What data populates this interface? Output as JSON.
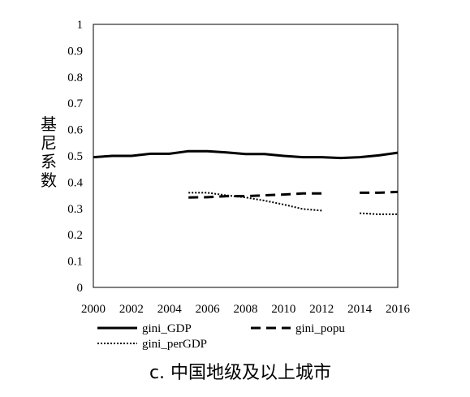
{
  "chart_data": {
    "type": "line",
    "caption": "c. 中国地级及以上城市",
    "ylabel": "基尼系数",
    "xlabel": "",
    "xlim": [
      2000,
      2016
    ],
    "ylim": [
      0,
      1
    ],
    "x_ticks": [
      "2000",
      "2002",
      "2004",
      "2006",
      "2008",
      "2010",
      "2012",
      "2014",
      "2016"
    ],
    "y_ticks": [
      "0",
      "0.1",
      "0.2",
      "0.3",
      "0.4",
      "0.5",
      "0.6",
      "0.7",
      "0.8",
      "0.9",
      "1"
    ],
    "grid": false,
    "legend_position": "bottom",
    "series": [
      {
        "name": "gini_GDP",
        "style": "solid",
        "color": "#000000",
        "points": [
          [
            2000,
            0.495
          ],
          [
            2001,
            0.5
          ],
          [
            2002,
            0.5
          ],
          [
            2003,
            0.508
          ],
          [
            2004,
            0.508
          ],
          [
            2005,
            0.518
          ],
          [
            2006,
            0.518
          ],
          [
            2007,
            0.513
          ],
          [
            2008,
            0.507
          ],
          [
            2009,
            0.507
          ],
          [
            2010,
            0.5
          ],
          [
            2011,
            0.495
          ],
          [
            2012,
            0.495
          ],
          [
            2013,
            0.492
          ],
          [
            2014,
            0.495
          ],
          [
            2015,
            0.502
          ],
          [
            2016,
            0.512
          ]
        ]
      },
      {
        "name": "gini_popu",
        "style": "dashed",
        "color": "#000000",
        "points": [
          [
            2005,
            0.342
          ],
          [
            2006,
            0.343
          ],
          [
            2007,
            0.347
          ],
          [
            2008,
            0.347
          ],
          [
            2009,
            0.35
          ],
          [
            2010,
            0.353
          ],
          [
            2011,
            0.357
          ],
          [
            2012,
            0.357
          ],
          [
            null,
            null
          ],
          [
            2014,
            0.36
          ],
          [
            2015,
            0.36
          ],
          [
            2016,
            0.363
          ]
        ]
      },
      {
        "name": "gini_perGDP",
        "style": "dotted",
        "color": "#000000",
        "points": [
          [
            2005,
            0.36
          ],
          [
            2006,
            0.36
          ],
          [
            2007,
            0.35
          ],
          [
            2008,
            0.342
          ],
          [
            2009,
            0.33
          ],
          [
            2010,
            0.315
          ],
          [
            2011,
            0.298
          ],
          [
            2012,
            0.292
          ],
          [
            null,
            null
          ],
          [
            2014,
            0.282
          ],
          [
            2015,
            0.278
          ],
          [
            2016,
            0.278
          ]
        ]
      }
    ]
  }
}
